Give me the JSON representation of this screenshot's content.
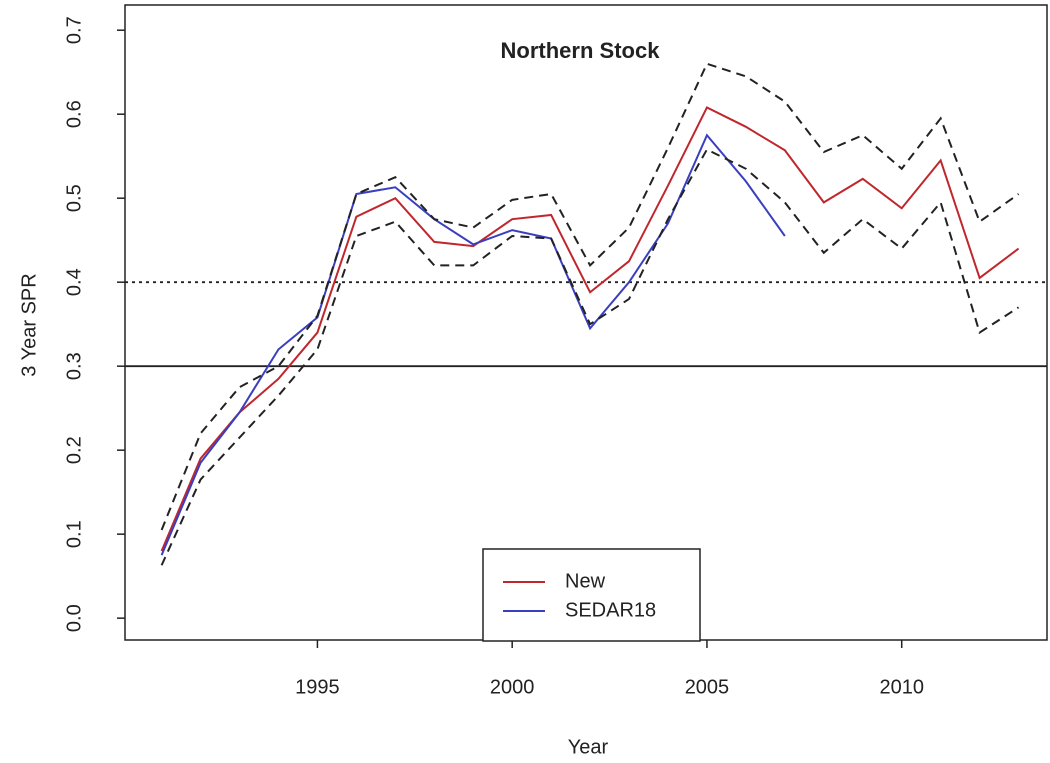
{
  "chart_data": {
    "type": "line",
    "title": "Northern Stock",
    "x_label": "Year",
    "y_label": "3 Year SPR",
    "x": [
      1991,
      1992,
      1993,
      1994,
      1995,
      1996,
      1997,
      1998,
      1999,
      2000,
      2001,
      2002,
      2003,
      2004,
      2005,
      2006,
      2007,
      2008,
      2009,
      2010,
      2011,
      2012,
      2013
    ],
    "series": [
      {
        "name": "New",
        "color": "#c0272d",
        "dash": "solid",
        "values": [
          0.08,
          0.19,
          0.245,
          0.285,
          0.34,
          0.478,
          0.5,
          0.448,
          0.443,
          0.475,
          0.48,
          0.388,
          0.425,
          0.515,
          0.608,
          0.585,
          0.557,
          0.495,
          0.523,
          0.488,
          0.545,
          0.405,
          0.44
        ]
      },
      {
        "name": "SEDAR18",
        "color": "#3a3fc0",
        "dash": "solid",
        "values": [
          0.075,
          0.185,
          0.245,
          0.32,
          0.358,
          0.505,
          0.513,
          0.475,
          0.445,
          0.462,
          0.452,
          0.345,
          0.4,
          0.47,
          0.575,
          0.52,
          0.455,
          null,
          null,
          null,
          null,
          null,
          null
        ]
      },
      {
        "color": "#222222",
        "dash": "dashed",
        "values": [
          0.105,
          0.22,
          0.275,
          0.3,
          0.36,
          0.505,
          0.525,
          0.475,
          0.465,
          0.498,
          0.505,
          0.42,
          0.465,
          0.56,
          0.66,
          0.645,
          0.615,
          0.555,
          0.575,
          0.535,
          0.595,
          0.472,
          0.505
        ]
      },
      {
        "color": "#222222",
        "dash": "dashed",
        "values": [
          0.063,
          0.165,
          0.215,
          0.265,
          0.32,
          0.455,
          0.472,
          0.42,
          0.42,
          0.455,
          0.452,
          0.35,
          0.38,
          0.475,
          0.558,
          0.535,
          0.495,
          0.435,
          0.475,
          0.44,
          0.495,
          0.34,
          0.37
        ]
      }
    ],
    "hlines": [
      {
        "value": 0.4,
        "style": "dotted"
      },
      {
        "value": 0.3,
        "style": "solid"
      }
    ],
    "xlim": [
      1990.06,
      2013.73
    ],
    "ylim": [
      -0.026,
      0.73
    ],
    "xticks": [
      1995,
      2000,
      2005,
      2010
    ],
    "yticks": [
      {
        "value": 0,
        "label": "0.0"
      },
      0.1,
      0.2,
      0.3,
      0.4,
      0.5,
      0.6,
      0.7
    ],
    "legend": "bottom"
  }
}
